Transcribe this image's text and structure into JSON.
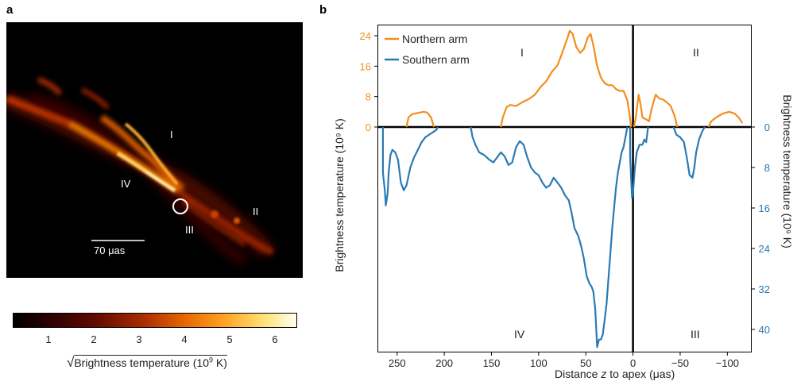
{
  "panel_a": {
    "letter": "a",
    "region_labels": [
      "I",
      "II",
      "III",
      "IV"
    ],
    "scale_bar_label": "70 μas",
    "colorbar": {
      "ticks": [
        "1",
        "2",
        "3",
        "4",
        "5",
        "6"
      ],
      "label_symbol": "√",
      "label": "Brightness temperature (10",
      "label_sup": "9",
      "label_tail": " K)"
    }
  },
  "panel_b": {
    "letter": "b",
    "region_labels": {
      "top_left": "I",
      "top_right": "II",
      "bottom_left": "IV",
      "bottom_right": "III"
    }
  },
  "chart_data": {
    "type": "line",
    "xlabel_pre": "Distance ",
    "xlabel_var": "z",
    "xlabel_post": " to apex (μas)",
    "ylabel_left": "Brightness temperature (10⁹ K)",
    "ylabel_right": "Brightness temperature (10⁹ K)",
    "xlim": [
      270,
      -125
    ],
    "x_axis_reversed": true,
    "x_ticks": [
      250,
      200,
      150,
      100,
      50,
      0,
      -50,
      -100
    ],
    "x_tick_labels": [
      "250",
      "200",
      "150",
      "100",
      "50",
      "0",
      "−50",
      "−100"
    ],
    "y_left_ticks": [
      0,
      8,
      16,
      24
    ],
    "y_left_tick_labels": [
      "0",
      "8",
      "16",
      "24"
    ],
    "y_left_lim": [
      0,
      27
    ],
    "y_right_ticks": [
      0,
      8,
      16,
      24,
      32,
      40
    ],
    "y_right_tick_labels": [
      "0",
      "8",
      "16",
      "24",
      "32",
      "40"
    ],
    "y_right_lim": [
      0,
      45
    ],
    "legend": {
      "position": "top-left"
    },
    "colors": {
      "north": "#f28e1c",
      "south": "#2a7ab5",
      "axes": "#000000"
    },
    "series": [
      {
        "name": "Northern arm",
        "axis": "left",
        "segments": [
          [
            [
              240,
              0
            ],
            [
              238,
              2.5
            ],
            [
              234,
              3.4
            ],
            [
              228,
              3.7
            ],
            [
              222,
              4
            ],
            [
              218,
              3.8
            ],
            [
              214,
              2.5
            ],
            [
              211,
              0
            ]
          ],
          [
            [
              140,
              0
            ],
            [
              138,
              2.5
            ],
            [
              134,
              5.2
            ],
            [
              130,
              5.8
            ],
            [
              124,
              5.5
            ],
            [
              118,
              6.4
            ],
            [
              110,
              7.4
            ],
            [
              104,
              8.5
            ],
            [
              98,
              10.5
            ],
            [
              92,
              12
            ],
            [
              86,
              14.5
            ],
            [
              80,
              16.2
            ],
            [
              75,
              19.5
            ],
            [
              70,
              23
            ],
            [
              67,
              25.3
            ],
            [
              64,
              24.5
            ],
            [
              60,
              21
            ],
            [
              56,
              19.5
            ],
            [
              52,
              20.5
            ],
            [
              48,
              23.5
            ],
            [
              45,
              24.5
            ],
            [
              42,
              21.5
            ],
            [
              38,
              16
            ],
            [
              34,
              13
            ],
            [
              30,
              11.5
            ],
            [
              26,
              11
            ],
            [
              22,
              11
            ],
            [
              18,
              10
            ],
            [
              14,
              9.5
            ],
            [
              10,
              9.5
            ],
            [
              6,
              7
            ],
            [
              4,
              4
            ],
            [
              2,
              0
            ]
          ],
          [
            [
              -1,
              0
            ],
            [
              -3,
              2.5
            ],
            [
              -6,
              8.5
            ],
            [
              -8,
              6
            ],
            [
              -10,
              2.5
            ],
            [
              -14,
              2
            ],
            [
              -17,
              1.5
            ],
            [
              -20,
              5
            ],
            [
              -24,
              8.5
            ],
            [
              -28,
              7.5
            ],
            [
              -32,
              7.2
            ],
            [
              -36,
              6.5
            ],
            [
              -40,
              5.5
            ],
            [
              -44,
              3
            ],
            [
              -47,
              0
            ]
          ],
          [
            [
              -80,
              0
            ],
            [
              -83,
              1.5
            ],
            [
              -88,
              2.5
            ],
            [
              -95,
              3.5
            ],
            [
              -102,
              4
            ],
            [
              -108,
              3.5
            ],
            [
              -112,
              2.5
            ],
            [
              -116,
              1
            ]
          ]
        ]
      },
      {
        "name": "Southern arm",
        "axis": "right",
        "segments": [
          [
            [
              265,
              0
            ],
            [
              265,
              9
            ],
            [
              263,
              12.5
            ],
            [
              262,
              15.5
            ],
            [
              260,
              13
            ],
            [
              259,
              9
            ],
            [
              257,
              5.5
            ],
            [
              255,
              4.5
            ],
            [
              252,
              5
            ],
            [
              249,
              6.5
            ],
            [
              246,
              11
            ],
            [
              243,
              12.5
            ],
            [
              240,
              11.5
            ],
            [
              236,
              8
            ],
            [
              232,
              6
            ],
            [
              228,
              4.5
            ],
            [
              224,
              3
            ],
            [
              220,
              2
            ],
            [
              216,
              1.5
            ],
            [
              212,
              1
            ],
            [
              208,
              0.5
            ],
            [
              207,
              0
            ]
          ],
          [
            [
              172,
              0
            ],
            [
              170,
              2
            ],
            [
              167,
              3.5
            ],
            [
              163,
              5
            ],
            [
              158,
              5.5
            ],
            [
              152,
              6.5
            ],
            [
              148,
              7
            ],
            [
              144,
              6
            ],
            [
              140,
              5
            ],
            [
              136,
              5.8
            ],
            [
              132,
              7.5
            ],
            [
              128,
              7
            ],
            [
              124,
              4
            ],
            [
              120,
              2.8
            ],
            [
              116,
              3.5
            ],
            [
              112,
              6
            ],
            [
              108,
              8
            ],
            [
              104,
              9
            ],
            [
              100,
              9.5
            ],
            [
              96,
              11
            ],
            [
              92,
              12
            ],
            [
              88,
              11.5
            ],
            [
              84,
              10
            ],
            [
              80,
              11
            ],
            [
              76,
              12
            ],
            [
              72,
              13.5
            ],
            [
              68,
              14.5
            ],
            [
              65,
              17
            ],
            [
              62,
              20
            ],
            [
              58,
              21.5
            ],
            [
              55,
              23.5
            ],
            [
              52,
              26
            ],
            [
              49,
              29.5
            ],
            [
              46,
              31
            ],
            [
              44,
              31.5
            ],
            [
              42,
              32.5
            ],
            [
              40,
              36
            ],
            [
              38,
              43.5
            ],
            [
              36,
              42
            ],
            [
              34,
              42
            ],
            [
              32,
              41
            ],
            [
              30,
              38
            ],
            [
              28,
              35
            ],
            [
              26,
              30
            ],
            [
              24,
              25
            ],
            [
              22,
              20
            ],
            [
              20,
              16
            ],
            [
              18,
              12
            ],
            [
              16,
              9
            ],
            [
              14,
              7
            ],
            [
              12,
              5
            ],
            [
              10,
              4
            ],
            [
              8,
              2
            ],
            [
              6,
              0
            ]
          ],
          [
            [
              3,
              0
            ],
            [
              3,
              6
            ],
            [
              1,
              14
            ],
            [
              0,
              13
            ],
            [
              -2,
              8
            ],
            [
              -4,
              5
            ],
            [
              -7,
              3.5
            ],
            [
              -10,
              3.5
            ],
            [
              -12,
              2.5
            ],
            [
              -14,
              3
            ],
            [
              -16,
              0
            ]
          ],
          [
            [
              -43,
              0
            ],
            [
              -46,
              1.5
            ],
            [
              -50,
              2
            ],
            [
              -54,
              3
            ],
            [
              -57,
              6
            ],
            [
              -60,
              9.5
            ],
            [
              -63,
              10
            ],
            [
              -65,
              8
            ],
            [
              -67,
              5
            ],
            [
              -70,
              2.5
            ],
            [
              -73,
              1
            ],
            [
              -76,
              0
            ]
          ]
        ]
      }
    ]
  }
}
